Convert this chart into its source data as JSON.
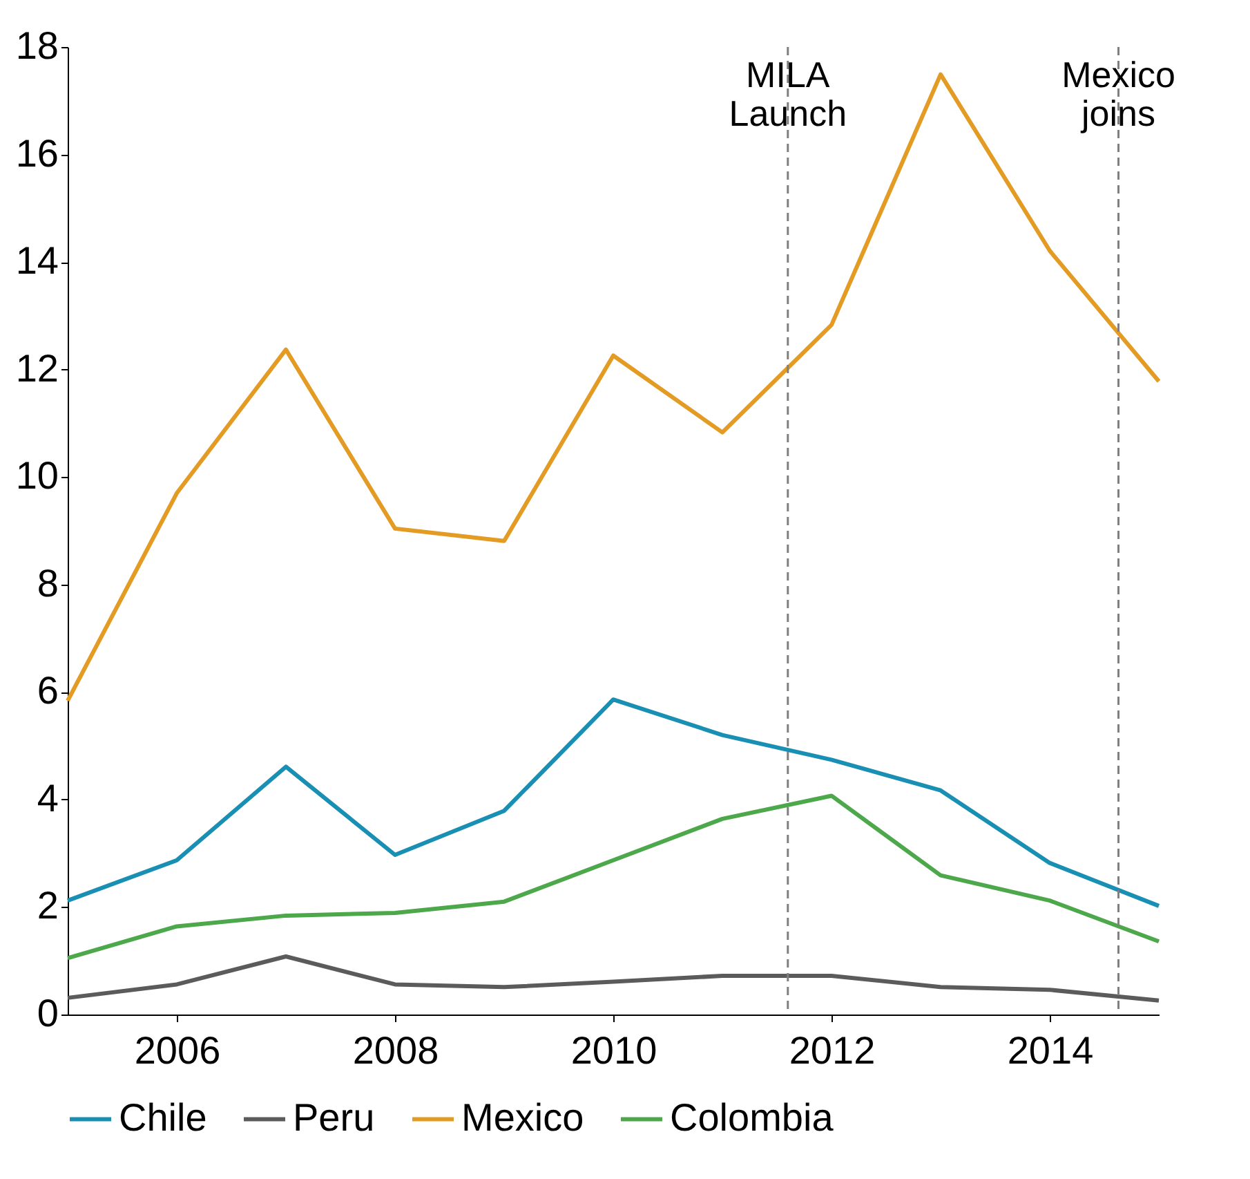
{
  "chart_data": {
    "type": "line",
    "x": [
      2005,
      2006,
      2007,
      2008,
      2009,
      2010,
      2011,
      2012,
      2013,
      2014,
      2015
    ],
    "series": [
      {
        "name": "Chile",
        "color": "#1a8fb4",
        "values": [
          2.12,
          2.87,
          4.61,
          2.97,
          3.79,
          5.86,
          5.2,
          4.74,
          4.17,
          2.82,
          2.02
        ]
      },
      {
        "name": "Peru",
        "color": "#5b5b5b",
        "values": [
          0.31,
          0.56,
          1.08,
          0.56,
          0.51,
          0.61,
          0.72,
          0.72,
          0.51,
          0.46,
          0.26
        ]
      },
      {
        "name": "Mexico",
        "color": "#e49b23",
        "values": [
          5.84,
          9.7,
          12.37,
          9.04,
          8.81,
          12.26,
          10.83,
          12.83,
          17.49,
          14.21,
          11.78
        ]
      },
      {
        "name": "Colombia",
        "color": "#4ca84a",
        "values": [
          1.05,
          1.64,
          1.84,
          1.89,
          2.1,
          2.87,
          3.64,
          4.07,
          2.59,
          2.12,
          1.36
        ]
      }
    ],
    "xlim": [
      2005,
      2015
    ],
    "xticks": [
      2006,
      2008,
      2010,
      2012,
      2014
    ],
    "ylim": [
      0,
      18
    ],
    "yticks": [
      0,
      2,
      4,
      6,
      8,
      10,
      12,
      14,
      16,
      18
    ],
    "ref_lines": [
      {
        "axis": "x",
        "value": 2011.6,
        "label": "MILA Launch",
        "color": "#7f7f7f",
        "line_style": "dashed"
      },
      {
        "axis": "x",
        "value": 2014.63,
        "label": "Mexico joins",
        "color": "#7f7f7f",
        "line_style": "dashed"
      }
    ],
    "grid": false,
    "legend": "bottom",
    "marker": "none",
    "line_style": "solid"
  }
}
